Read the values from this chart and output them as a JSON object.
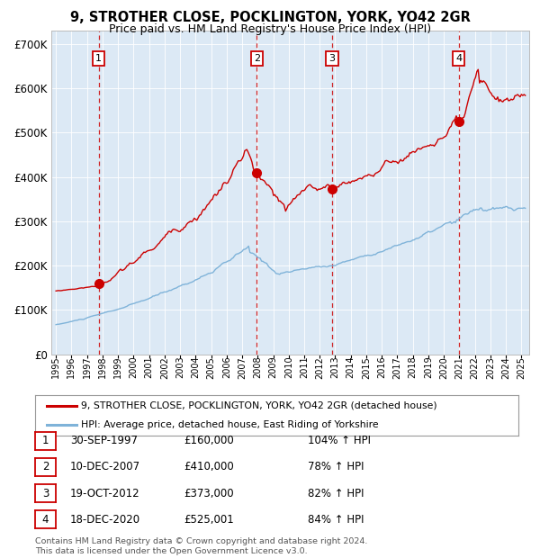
{
  "title_line1": "9, STROTHER CLOSE, POCKLINGTON, YORK, YO42 2GR",
  "title_line2": "Price paid vs. HM Land Registry's House Price Index (HPI)",
  "bg_color": "#dce9f5",
  "ylabel_values": [
    "£0",
    "£100K",
    "£200K",
    "£300K",
    "£400K",
    "£500K",
    "£600K",
    "£700K"
  ],
  "ytick_values": [
    0,
    100000,
    200000,
    300000,
    400000,
    500000,
    600000,
    700000
  ],
  "ylim": [
    0,
    730000
  ],
  "xlim_start": 1994.7,
  "xlim_end": 2025.5,
  "xtick_years": [
    1995,
    1996,
    1997,
    1998,
    1999,
    2000,
    2001,
    2002,
    2003,
    2004,
    2005,
    2006,
    2007,
    2008,
    2009,
    2010,
    2011,
    2012,
    2013,
    2014,
    2015,
    2016,
    2017,
    2018,
    2019,
    2020,
    2021,
    2022,
    2023,
    2024,
    2025
  ],
  "red_line_color": "#cc0000",
  "blue_line_color": "#7fb3d9",
  "dashed_line_color": "#cc0000",
  "sale_points": [
    {
      "year": 1997.75,
      "price": 160000,
      "label": "1"
    },
    {
      "year": 2007.94,
      "price": 410000,
      "label": "2"
    },
    {
      "year": 2012.8,
      "price": 373000,
      "label": "3"
    },
    {
      "year": 2020.96,
      "price": 525001,
      "label": "4"
    }
  ],
  "legend_line1": "9, STROTHER CLOSE, POCKLINGTON, YORK, YO42 2GR (detached house)",
  "legend_line2": "HPI: Average price, detached house, East Riding of Yorkshire",
  "table_rows": [
    {
      "num": "1",
      "date": "30-SEP-1997",
      "price": "£160,000",
      "hpi": "104% ↑ HPI"
    },
    {
      "num": "2",
      "date": "10-DEC-2007",
      "price": "£410,000",
      "hpi": "78% ↑ HPI"
    },
    {
      "num": "3",
      "date": "19-OCT-2012",
      "price": "£373,000",
      "hpi": "82% ↑ HPI"
    },
    {
      "num": "4",
      "date": "18-DEC-2020",
      "price": "£525,001",
      "hpi": "84% ↑ HPI"
    }
  ],
  "footer_text": "Contains HM Land Registry data © Crown copyright and database right 2024.\nThis data is licensed under the Open Government Licence v3.0.",
  "grid_color": "#ffffff",
  "outer_bg": "#ffffff"
}
